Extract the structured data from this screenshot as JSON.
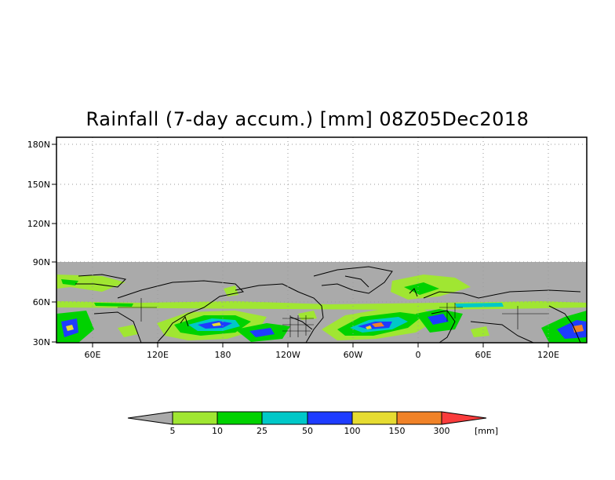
{
  "title": "Rainfall (7-day accum.) [mm] 08Z05Dec2018",
  "map": {
    "y_ticks": [
      "180N",
      "150N",
      "120N",
      "90N",
      "60N",
      "30N"
    ],
    "x_ticks": [
      "60E",
      "120E",
      "180",
      "120W",
      "60W",
      "0",
      "60E",
      "120E"
    ],
    "lat_range": [
      30,
      180
    ],
    "gridlines": "dotted",
    "no_data_color": "#aaaaaa",
    "coastline_color": "#000000"
  },
  "legend": {
    "unit": "[mm]",
    "labels": [
      "5",
      "10",
      "25",
      "50",
      "100",
      "150",
      "300"
    ],
    "colors": [
      "#aaaaaa",
      "#a0e632",
      "#00d200",
      "#00c8c8",
      "#1e3cff",
      "#e6dc32",
      "#f08228",
      "#fa3c3c"
    ]
  }
}
